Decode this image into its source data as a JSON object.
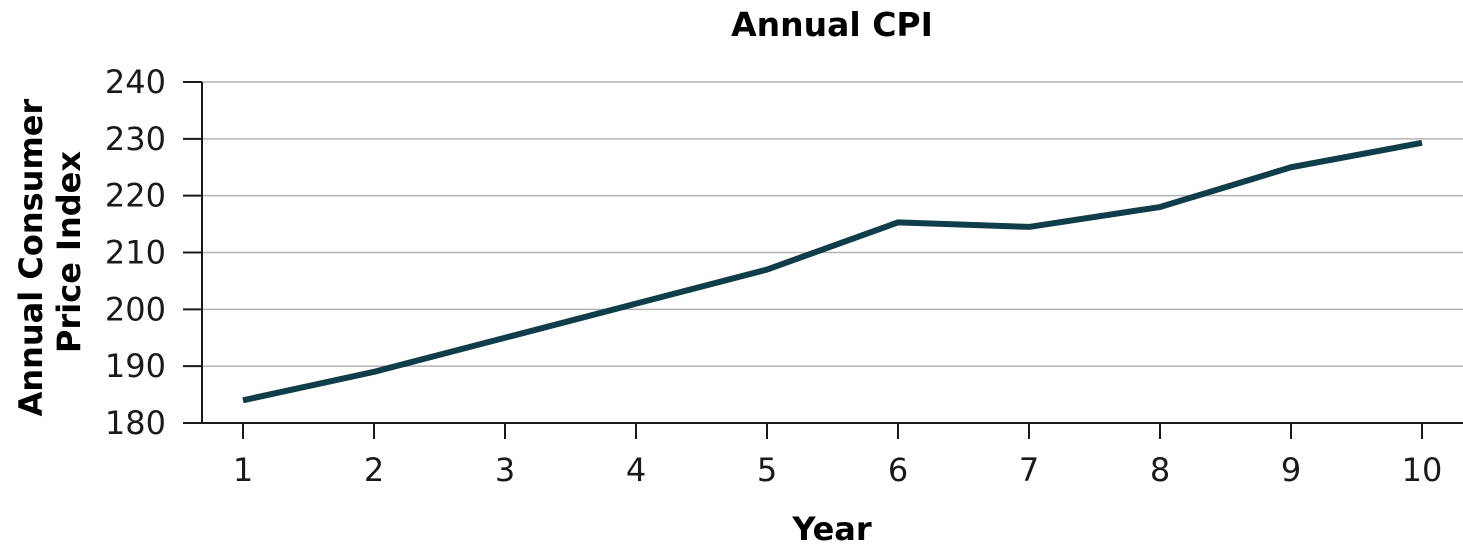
{
  "chart_data": {
    "type": "line",
    "title": "Annual CPI",
    "xlabel": "Year",
    "ylabel_lines": [
      "Annual Consumer",
      "Price Index"
    ],
    "x": [
      1,
      2,
      3,
      4,
      5,
      6,
      7,
      8,
      9,
      10
    ],
    "x_tick_labels": [
      "1",
      "2",
      "3",
      "4",
      "5",
      "6",
      "7",
      "8",
      "9",
      "10"
    ],
    "y_ticks": [
      180,
      190,
      200,
      210,
      220,
      230,
      240
    ],
    "y_tick_labels": [
      "180",
      "190",
      "200",
      "210",
      "220",
      "230",
      "240"
    ],
    "ylim": [
      180,
      240
    ],
    "grid": true,
    "series": [
      {
        "values": [
          184,
          189,
          195,
          201,
          207,
          215.3,
          214.5,
          218,
          225,
          229.3
        ]
      }
    ],
    "colors": {
      "line": "#0f3d4a",
      "grid": "#b3b3b3",
      "axis": "#1a1a1a"
    }
  }
}
